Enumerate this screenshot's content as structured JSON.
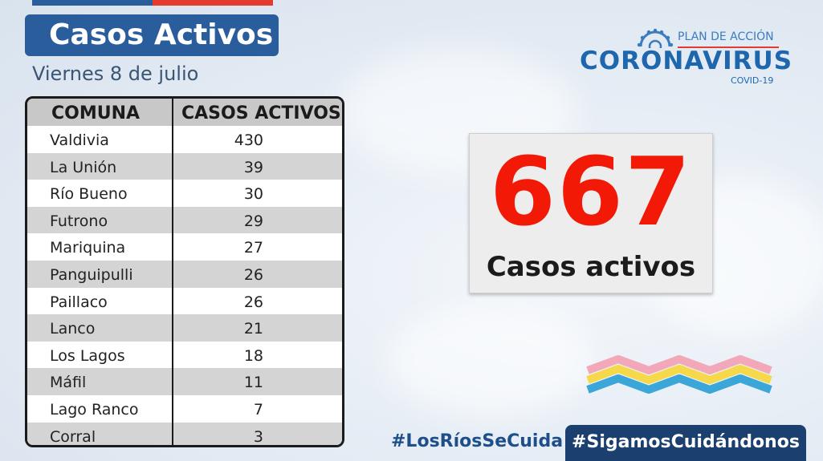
{
  "header": {
    "title": "Casos Activos",
    "date": "Viernes 8 de julio"
  },
  "logo": {
    "plan": "PLAN DE ACCIÓN",
    "name": "CORONAVIRUS",
    "sub": "COVID-19"
  },
  "table": {
    "headers": [
      "COMUNA",
      "CASOS ACTIVOS"
    ],
    "rows": [
      {
        "comuna": "Valdivia",
        "casos": "430"
      },
      {
        "comuna": "La Unión",
        "casos": "39"
      },
      {
        "comuna": "Río Bueno",
        "casos": "30"
      },
      {
        "comuna": "Futrono",
        "casos": "29"
      },
      {
        "comuna": "Mariquina",
        "casos": "27"
      },
      {
        "comuna": "Panguipulli",
        "casos": "26"
      },
      {
        "comuna": "Paillaco",
        "casos": "26"
      },
      {
        "comuna": "Lanco",
        "casos": "21"
      },
      {
        "comuna": "Los Lagos",
        "casos": "18"
      },
      {
        "comuna": "Máfil",
        "casos": "11"
      },
      {
        "comuna": "Lago Ranco",
        "casos": "7"
      },
      {
        "comuna": "Corral",
        "casos": "3"
      }
    ]
  },
  "summary": {
    "total": "667",
    "label": "Casos activos"
  },
  "hashtags": {
    "first": "#LosRíosSeCuida",
    "second": "#SigamosCuidándonos"
  },
  "colors": {
    "primary_blue": "#2a5d9c",
    "accent_red": "#f21a07",
    "navy": "#1b3f6e"
  }
}
